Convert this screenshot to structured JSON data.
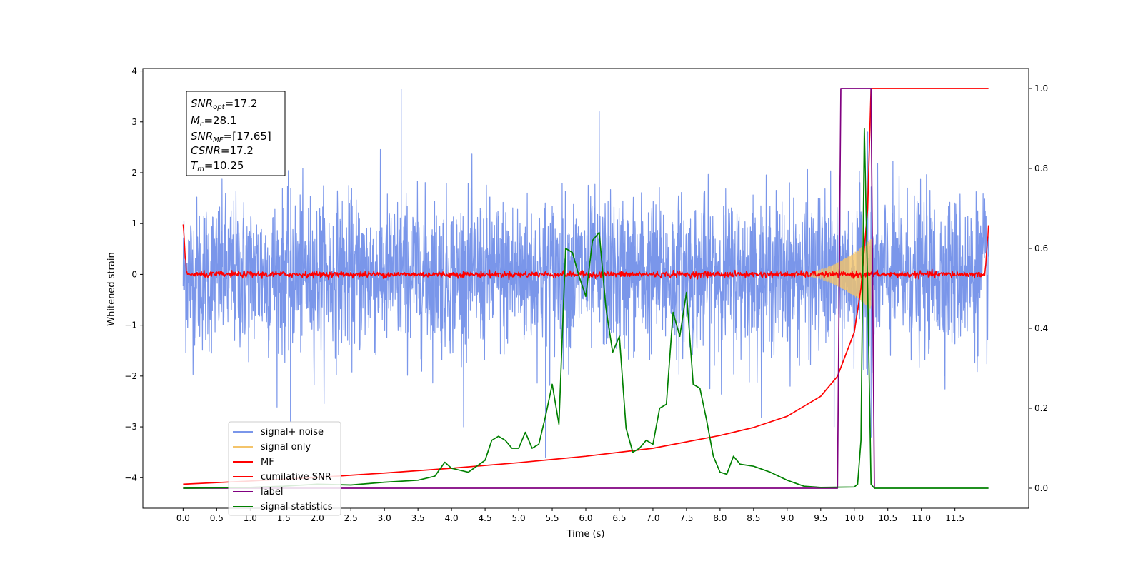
{
  "chart_data": {
    "type": "line",
    "xlabel": "Time (s)",
    "ylabel": "Whitened strain",
    "xlim": [
      -0.6,
      12.6
    ],
    "ylim": [
      -4.6,
      4.05
    ],
    "y2lim": [
      -0.05,
      1.05
    ],
    "x_ticks": [
      "0.0",
      "0.5",
      "1.0",
      "1.5",
      "2.0",
      "2.5",
      "3.0",
      "3.5",
      "4.0",
      "4.5",
      "5.0",
      "5.5",
      "6.0",
      "6.5",
      "7.0",
      "7.5",
      "8.0",
      "8.5",
      "9.0",
      "9.5",
      "10.0",
      "10.5",
      "11.0",
      "11.5"
    ],
    "y_ticks": [
      "4",
      "3",
      "2",
      "1",
      "0",
      "−1",
      "−2",
      "−3",
      "−4"
    ],
    "y2_ticks": [
      "1.0",
      "0.8",
      "0.6",
      "0.4",
      "0.2",
      "0.0"
    ],
    "legend_position": "lower-left",
    "annotation_lines": [
      {
        "name": "SNR",
        "sub": "opt",
        "value": "=17.2"
      },
      {
        "name": "M",
        "sub": "c",
        "value": "=28.1"
      },
      {
        "name": "SNR",
        "sub": "MF",
        "value": "=[17.65]"
      },
      {
        "name": "CSNR",
        "sub": "",
        "value": "=17.2"
      },
      {
        "name": "T",
        "sub": "m",
        "value": "=10.25"
      }
    ],
    "series": [
      {
        "name": "signal+ noise",
        "color": "#4169e1",
        "axis": "left",
        "kind": "noise",
        "x_range": [
          0.0,
          12.0
        ],
        "std": 0.75,
        "spikes": [
          [
            3.25,
            3.65
          ],
          [
            6.2,
            3.2
          ],
          [
            1.6,
            -2.9
          ],
          [
            5.4,
            -3.6
          ],
          [
            10.2,
            2.8
          ],
          [
            10.25,
            -3.2
          ],
          [
            9.7,
            -3.0
          ]
        ]
      },
      {
        "name": "signal only",
        "color": "#f4c46a",
        "axis": "left",
        "kind": "chirp",
        "x_range": [
          9.0,
          10.25
        ],
        "peak_amplitude": 0.7
      },
      {
        "name": "MF",
        "color": "#ff0000",
        "axis": "left",
        "kind": "mf",
        "x_range": [
          0.0,
          12.0
        ],
        "std": 0.03,
        "edge_values": [
          1.0,
          0.97
        ]
      },
      {
        "name": "cumilative SNR",
        "color": "#ff0000",
        "axis": "right",
        "x": [
          0.0,
          1.0,
          2.0,
          3.0,
          4.0,
          5.0,
          6.0,
          7.0,
          8.0,
          8.5,
          9.0,
          9.5,
          9.75,
          10.0,
          10.1,
          10.2,
          10.25,
          12.0
        ],
        "y": [
          0.01,
          0.018,
          0.027,
          0.038,
          0.05,
          0.064,
          0.08,
          0.1,
          0.132,
          0.152,
          0.18,
          0.23,
          0.28,
          0.39,
          0.5,
          0.7,
          1.0,
          1.0
        ]
      },
      {
        "name": "label",
        "color": "#800080",
        "axis": "right",
        "x": [
          0.0,
          9.75,
          9.8,
          10.25,
          10.3,
          10.3
        ],
        "y": [
          0.0,
          0.0,
          1.0,
          1.0,
          0.0,
          0.0
        ]
      },
      {
        "name": "signal statistics",
        "color": "#008000",
        "axis": "right",
        "x": [
          0.0,
          1.0,
          1.5,
          2.0,
          2.5,
          3.0,
          3.5,
          3.75,
          3.9,
          4.0,
          4.25,
          4.5,
          4.6,
          4.7,
          4.8,
          4.9,
          5.0,
          5.1,
          5.2,
          5.3,
          5.4,
          5.5,
          5.6,
          5.7,
          5.8,
          5.9,
          6.0,
          6.1,
          6.2,
          6.3,
          6.4,
          6.5,
          6.6,
          6.7,
          6.8,
          6.9,
          7.0,
          7.1,
          7.2,
          7.3,
          7.4,
          7.5,
          7.6,
          7.7,
          7.8,
          7.9,
          8.0,
          8.1,
          8.2,
          8.3,
          8.5,
          8.75,
          9.0,
          9.25,
          9.5,
          10.0,
          10.05,
          10.1,
          10.15,
          10.2,
          10.25,
          10.3,
          11.0,
          12.0
        ],
        "y": [
          0.0,
          0.002,
          0.005,
          0.01,
          0.008,
          0.015,
          0.02,
          0.03,
          0.065,
          0.05,
          0.04,
          0.07,
          0.12,
          0.13,
          0.12,
          0.1,
          0.1,
          0.14,
          0.1,
          0.11,
          0.18,
          0.26,
          0.16,
          0.6,
          0.59,
          0.53,
          0.48,
          0.62,
          0.64,
          0.45,
          0.34,
          0.38,
          0.15,
          0.09,
          0.1,
          0.12,
          0.11,
          0.2,
          0.21,
          0.44,
          0.38,
          0.49,
          0.26,
          0.25,
          0.17,
          0.08,
          0.04,
          0.035,
          0.08,
          0.06,
          0.055,
          0.04,
          0.02,
          0.005,
          0.002,
          0.003,
          0.01,
          0.12,
          0.9,
          0.5,
          0.01,
          0.0,
          0.0,
          0.0
        ]
      }
    ]
  }
}
